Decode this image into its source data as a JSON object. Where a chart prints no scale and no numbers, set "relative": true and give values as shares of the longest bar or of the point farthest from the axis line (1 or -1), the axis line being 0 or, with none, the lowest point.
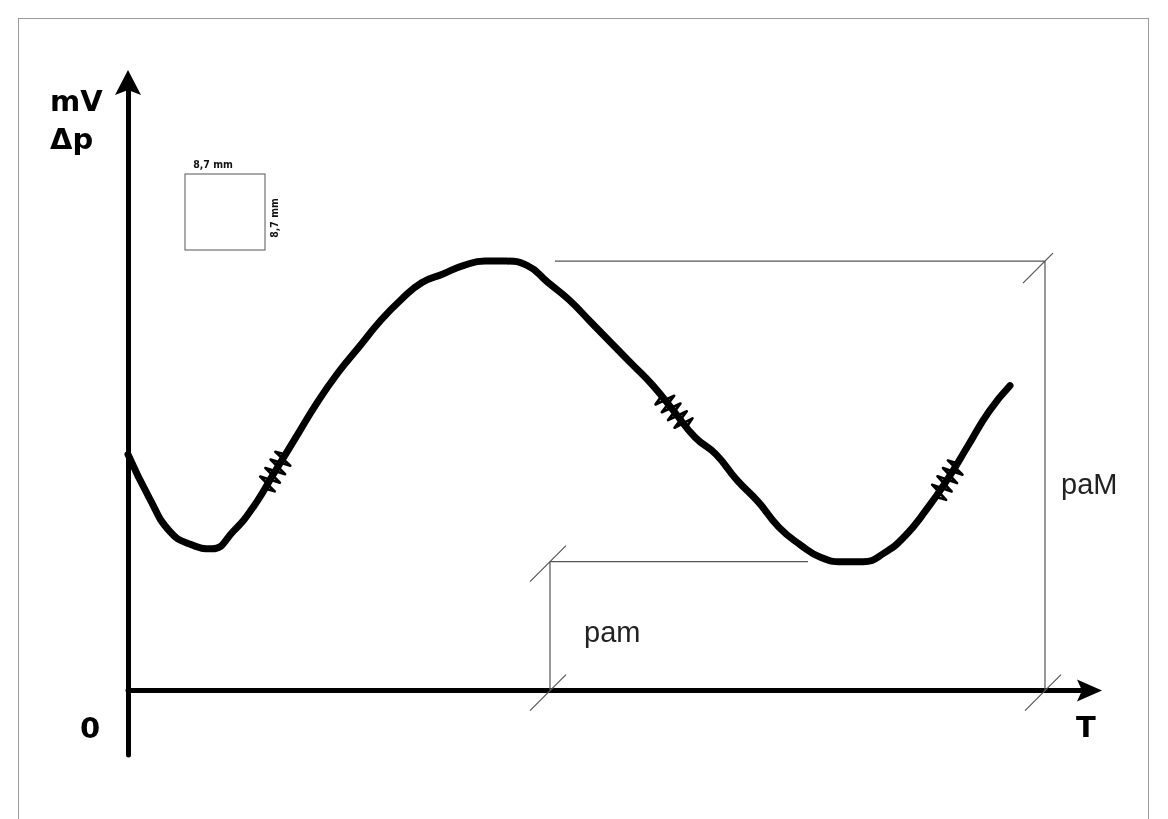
{
  "chart_data": {
    "type": "line",
    "relative": true,
    "xlabel": "T",
    "ylabel": "mV\nΔp",
    "annotations": [
      "0",
      "paM",
      "pam",
      "8,7 mm",
      "8,7 mm"
    ],
    "categories": [
      null,
      null,
      null,
      null,
      null,
      null,
      null,
      null,
      null,
      null,
      null,
      null,
      null,
      null,
      null,
      null,
      null,
      null,
      null,
      null,
      null,
      null,
      null,
      null,
      null,
      null,
      null,
      null,
      null,
      null,
      null,
      null,
      null,
      null,
      null,
      null,
      null,
      null,
      null,
      null,
      null,
      null,
      null
    ],
    "values": [
      0.55,
      0.45,
      0.37,
      0.34,
      0.33,
      0.37,
      0.43,
      0.51,
      0.59,
      0.67,
      0.74,
      0.8,
      0.86,
      0.91,
      0.95,
      0.97,
      0.99,
      1,
      1,
      0.99,
      0.95,
      0.91,
      0.86,
      0.81,
      0.76,
      0.71,
      0.65,
      0.59,
      0.55,
      0.49,
      0.44,
      0.38,
      0.34,
      0.31,
      0.3,
      0.3,
      0.32,
      0.36,
      0.42,
      0.49,
      0.57,
      0.65,
      0.71
    ],
    "color": "#000000",
    "marker": "none",
    "line_style": "solid"
  }
}
